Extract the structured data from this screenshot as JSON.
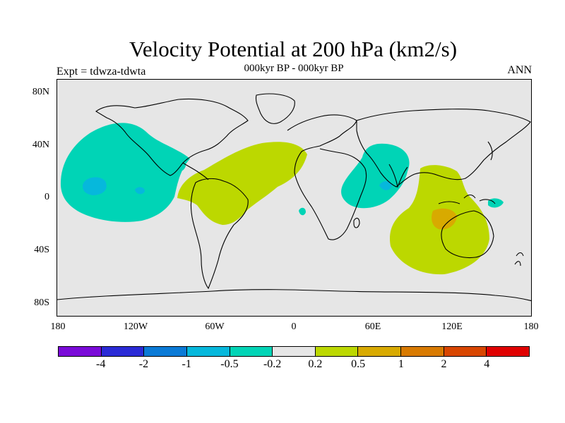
{
  "plot": {
    "title": "Velocity Potential at 200 hPa (km2/s)",
    "subtitle": "000kyr BP - 000kyr BP",
    "left_label": "Expt = tdwza-tdwta",
    "right_label": "ANN"
  },
  "axes": {
    "lat_labels": [
      "80N",
      "40N",
      "0",
      "40S",
      "80S"
    ],
    "lon_labels": [
      "180",
      "120W",
      "60W",
      "0",
      "60E",
      "120E",
      "180"
    ]
  },
  "colorbar": {
    "colors": [
      "#7a0ad8",
      "#2a2ad6",
      "#0a7ad6",
      "#06b8dc",
      "#00d4b6",
      "#e6e6e6",
      "#bcd800",
      "#d8aa00",
      "#d87a00",
      "#d84600",
      "#e00000"
    ],
    "labels": [
      "-4",
      "-2",
      "-1",
      "-0.5",
      "-0.2",
      "0.2",
      "0.5",
      "1",
      "2",
      "4"
    ]
  },
  "regions": [
    {
      "name": "north-pacific-negative",
      "level": "-0.5 to -0.2"
    },
    {
      "name": "central-pacific-core",
      "level": "-1 to -0.5"
    },
    {
      "name": "atlantic-positive",
      "level": "0.2 to 0.5"
    },
    {
      "name": "indian-ocean-negative",
      "level": "-0.5 to -0.2"
    },
    {
      "name": "maritime-continent-positive",
      "level": "0.2 to 0.5"
    },
    {
      "name": "west-australia-core",
      "level": "0.5 to 1"
    }
  ]
}
